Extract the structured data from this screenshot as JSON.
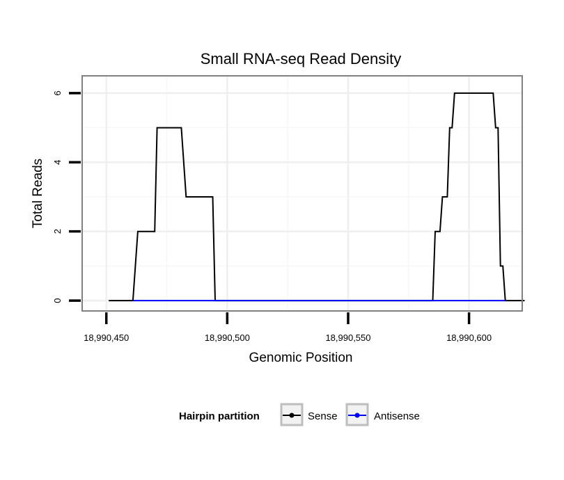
{
  "chart_data": {
    "type": "line",
    "title": "Small RNA-seq Read Density",
    "xlabel": "Genomic Position",
    "ylabel": "Total Reads",
    "xlim": [
      18990440,
      18990622
    ],
    "ylim": [
      -0.3,
      6.5
    ],
    "x_ticks": [
      18990450,
      18990500,
      18990550,
      18990600
    ],
    "x_tick_labels": [
      "18,990,450",
      "18,990,500",
      "18,990,550",
      "18,990,600"
    ],
    "y_ticks": [
      0,
      2,
      4,
      6
    ],
    "y_tick_labels": [
      "0",
      "2",
      "4",
      "6"
    ],
    "grid": true,
    "legend": {
      "title": "Hairpin partition",
      "position": "bottom",
      "entries": [
        {
          "label": "Sense",
          "color": "#000000"
        },
        {
          "label": "Antisense",
          "color": "#0000ff"
        }
      ]
    },
    "series": [
      {
        "name": "Sense",
        "color": "#000000",
        "x": [
          18990451,
          18990461,
          18990463,
          18990470,
          18990471,
          18990481,
          18990483,
          18990494,
          18990495,
          18990585,
          18990586,
          18990588,
          18990589,
          18990591,
          18990592,
          18990593,
          18990594,
          18990610,
          18990611,
          18990612,
          18990613,
          18990614,
          18990615,
          18990623
        ],
        "values": [
          0,
          0,
          2,
          2,
          5,
          5,
          3,
          3,
          0,
          0,
          2,
          2,
          3,
          3,
          5,
          5,
          6,
          6,
          5,
          5,
          1,
          1,
          0,
          0
        ]
      },
      {
        "name": "Antisense",
        "color": "#0000ff",
        "x": [
          18990461,
          18990495,
          18990586,
          18990615
        ],
        "values": [
          0,
          0,
          0,
          0
        ]
      }
    ]
  }
}
